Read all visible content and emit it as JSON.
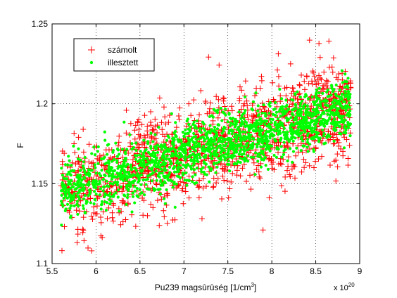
{
  "chart_data": {
    "type": "scatter",
    "ylabel": "F",
    "xlabel": {
      "text": "Pu239  magsûrûség [1/cm",
      "superscript": "3",
      "suffix": "]"
    },
    "x_multiplier": {
      "text": "x 10",
      "exponent": "20"
    },
    "xlim": [
      5.5,
      9.0
    ],
    "ylim": [
      1.1,
      1.25
    ],
    "xticks": [
      "5.5",
      "6",
      "6.5",
      "7",
      "7.5",
      "8",
      "8.5",
      "9"
    ],
    "yticks": [
      "1.1",
      "1.15",
      "1.2",
      "1.25"
    ],
    "grid": true,
    "grid_style": "dotted",
    "legend_placement": "top-left",
    "legend": [
      {
        "label": "számolt",
        "marker": "plus",
        "color": "#ff0000"
      },
      {
        "label": "illesztett",
        "marker": "dot",
        "color": "#00ff00"
      }
    ],
    "series": [
      {
        "name": "számolt",
        "marker": "plus",
        "color": "#ff0000",
        "x_range": [
          5.6,
          8.9
        ],
        "trend": {
          "slope": 0.0165,
          "intercept": 1.052
        },
        "spread_sd": 0.015,
        "outliers": [
          [
            8.55,
            1.229
          ],
          [
            5.75,
            1.175
          ],
          [
            8.5,
            1.172
          ],
          [
            7.9,
            1.121
          ],
          [
            5.95,
            1.108
          ]
        ]
      },
      {
        "name": "illesztett",
        "marker": "dot",
        "color": "#00ff00",
        "x_range": [
          5.6,
          8.9
        ],
        "trend": {
          "slope": 0.0165,
          "intercept": 1.052
        },
        "spread_sd": 0.009
      }
    ]
  }
}
